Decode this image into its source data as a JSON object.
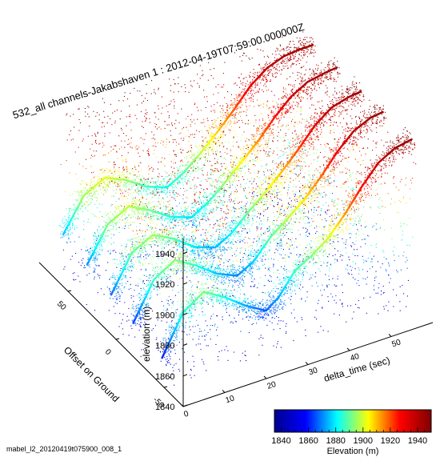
{
  "title": "532_all channels-Jakabshaven 1 : 2012-04-19T07:59:00.000000Z",
  "footer": "mabel_l2_20120419t075900_008_1",
  "chart_data": {
    "type": "scatter",
    "subtype": "3d-point-cloud",
    "title": "532_all channels-Jakabshaven 1 : 2012-04-19T07:59:00.000000Z",
    "xlabel": "delta_time (sec)",
    "ylabel": "Offset on Ground",
    "zlabel": "elevation (m)",
    "x_ticks": [
      "0",
      "10",
      "20",
      "30",
      "40",
      "50"
    ],
    "y_ticks": [
      "-50",
      "0",
      "50"
    ],
    "z_ticks": [
      "1840",
      "1860",
      "1880",
      "1900",
      "1920",
      "1940"
    ],
    "xlim": [
      0,
      60
    ],
    "ylim": [
      -70,
      80
    ],
    "zlim": [
      1840,
      1950
    ],
    "color_by": "elevation",
    "colormap": [
      "#00008f",
      "#0000ff",
      "#00ffff",
      "#ffff00",
      "#ff0000",
      "#800000"
    ],
    "colorbar": {
      "label": "Elevation (m)",
      "ticks": [
        "1840",
        "1860",
        "1880",
        "1900",
        "1920",
        "1940"
      ],
      "range": [
        1835,
        1950
      ]
    },
    "series": [
      {
        "name": "",
        "offset": -48,
        "profile": [
          [
            0,
            1858
          ],
          [
            5,
            1883
          ],
          [
            10,
            1892
          ],
          [
            15,
            1884
          ],
          [
            20,
            1874
          ],
          [
            25,
            1866
          ],
          [
            28,
            1872
          ],
          [
            32,
            1886
          ],
          [
            36,
            1892
          ],
          [
            40,
            1900
          ],
          [
            44,
            1912
          ],
          [
            48,
            1926
          ],
          [
            52,
            1938
          ],
          [
            56,
            1944
          ],
          [
            60,
            1946
          ]
        ]
      },
      {
        "name": "",
        "offset": -18,
        "profile": [
          [
            0,
            1862
          ],
          [
            5,
            1886
          ],
          [
            10,
            1894
          ],
          [
            15,
            1886
          ],
          [
            20,
            1876
          ],
          [
            25,
            1870
          ],
          [
            29,
            1876
          ],
          [
            33,
            1888
          ],
          [
            37,
            1896
          ],
          [
            41,
            1905
          ],
          [
            45,
            1916
          ],
          [
            49,
            1929
          ],
          [
            53,
            1939
          ],
          [
            57,
            1944
          ],
          [
            60,
            1945
          ]
        ]
      },
      {
        "name": "",
        "offset": 5,
        "profile": [
          [
            0,
            1866
          ],
          [
            5,
            1889
          ],
          [
            10,
            1896
          ],
          [
            15,
            1889
          ],
          [
            20,
            1879
          ],
          [
            25,
            1874
          ],
          [
            29,
            1880
          ],
          [
            33,
            1890
          ],
          [
            37,
            1899
          ],
          [
            41,
            1909
          ],
          [
            45,
            1920
          ],
          [
            49,
            1932
          ],
          [
            53,
            1940
          ],
          [
            57,
            1943
          ],
          [
            60,
            1944
          ]
        ]
      },
      {
        "name": "",
        "offset": 30,
        "profile": [
          [
            0,
            1870
          ],
          [
            5,
            1892
          ],
          [
            10,
            1899
          ],
          [
            15,
            1892
          ],
          [
            20,
            1883
          ],
          [
            25,
            1878
          ],
          [
            29,
            1884
          ],
          [
            33,
            1893
          ],
          [
            37,
            1903
          ],
          [
            41,
            1913
          ],
          [
            45,
            1925
          ],
          [
            49,
            1935
          ],
          [
            53,
            1941
          ],
          [
            57,
            1943
          ],
          [
            60,
            1944
          ]
        ]
      },
      {
        "name": "",
        "offset": 55,
        "profile": [
          [
            0,
            1874
          ],
          [
            5,
            1895
          ],
          [
            10,
            1902
          ],
          [
            15,
            1896
          ],
          [
            20,
            1887
          ],
          [
            25,
            1882
          ],
          [
            29,
            1888
          ],
          [
            33,
            1897
          ],
          [
            37,
            1907
          ],
          [
            41,
            1918
          ],
          [
            45,
            1930
          ],
          [
            49,
            1938
          ],
          [
            53,
            1942
          ],
          [
            57,
            1943
          ],
          [
            60,
            1943
          ]
        ]
      }
    ]
  }
}
